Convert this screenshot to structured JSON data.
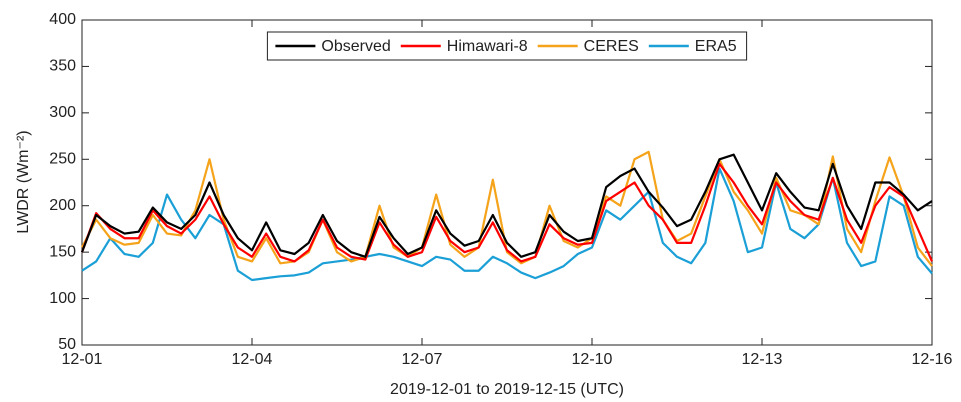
{
  "chart_data": {
    "type": "line",
    "ylabel": "LWDR (Wm⁻²)",
    "xlabel": "2019-12-01 to 2019-12-15 (UTC)",
    "xlim": [
      0,
      15
    ],
    "xticks": [
      {
        "value": 0,
        "label": "12-01"
      },
      {
        "value": 3,
        "label": "12-04"
      },
      {
        "value": 6,
        "label": "12-07"
      },
      {
        "value": 9,
        "label": "12-10"
      },
      {
        "value": 12,
        "label": "12-13"
      },
      {
        "value": 15,
        "label": "12-16"
      }
    ],
    "ylim": [
      50,
      400
    ],
    "yticks": [
      50,
      100,
      150,
      200,
      250,
      300,
      350,
      400
    ],
    "legend": "top",
    "x": [
      0,
      0.25,
      0.5,
      0.75,
      1,
      1.25,
      1.5,
      1.75,
      2,
      2.25,
      2.5,
      2.75,
      3,
      3.25,
      3.5,
      3.75,
      4,
      4.25,
      4.5,
      4.75,
      5,
      5.25,
      5.5,
      5.75,
      6,
      6.25,
      6.5,
      6.75,
      7,
      7.25,
      7.5,
      7.75,
      8,
      8.25,
      8.5,
      8.75,
      9,
      9.25,
      9.5,
      9.75,
      10,
      10.25,
      10.5,
      10.75,
      11,
      11.25,
      11.5,
      11.75,
      12,
      12.25,
      12.5,
      12.75,
      13,
      13.25,
      13.5,
      13.75,
      14,
      14.25,
      14.5,
      14.75,
      15
    ],
    "series": [
      {
        "name": "Observed",
        "color": "#000000",
        "values": [
          150,
          190,
          178,
          170,
          172,
          198,
          182,
          175,
          190,
          225,
          190,
          165,
          152,
          182,
          152,
          148,
          160,
          190,
          162,
          150,
          145,
          188,
          165,
          148,
          155,
          195,
          170,
          157,
          162,
          190,
          160,
          145,
          150,
          190,
          172,
          162,
          165,
          220,
          232,
          240,
          215,
          198,
          178,
          185,
          215,
          250,
          255,
          225,
          195,
          235,
          215,
          198,
          195,
          245,
          200,
          175,
          225,
          225,
          212,
          195,
          205
        ]
      },
      {
        "name": "Himawari-8",
        "color": "#ff0000",
        "values": [
          150,
          192,
          175,
          165,
          165,
          195,
          178,
          170,
          185,
          210,
          180,
          155,
          145,
          170,
          145,
          140,
          152,
          185,
          155,
          145,
          142,
          182,
          158,
          145,
          150,
          188,
          162,
          150,
          155,
          182,
          152,
          140,
          145,
          180,
          165,
          158,
          160,
          205,
          215,
          225,
          200,
          185,
          160,
          160,
          200,
          245,
          225,
          200,
          180,
          225,
          205,
          190,
          185,
          230,
          185,
          160,
          200,
          220,
          210,
          175,
          140
        ]
      },
      {
        "name": "CERES",
        "color": "#f5a31a",
        "values": [
          155,
          185,
          165,
          158,
          160,
          190,
          170,
          168,
          195,
          250,
          185,
          145,
          140,
          165,
          138,
          140,
          150,
          185,
          150,
          140,
          145,
          200,
          155,
          145,
          155,
          212,
          158,
          145,
          155,
          228,
          150,
          138,
          145,
          200,
          162,
          155,
          165,
          210,
          200,
          250,
          258,
          185,
          162,
          170,
          210,
          250,
          215,
          195,
          170,
          230,
          195,
          190,
          180,
          253,
          175,
          150,
          205,
          252,
          210,
          155,
          135
        ]
      },
      {
        "name": "ERA5",
        "color": "#1a9fd6",
        "values": [
          130,
          140,
          165,
          148,
          145,
          160,
          212,
          185,
          165,
          190,
          180,
          130,
          120,
          122,
          124,
          125,
          128,
          138,
          140,
          142,
          145,
          148,
          145,
          140,
          135,
          145,
          142,
          130,
          130,
          145,
          138,
          128,
          122,
          128,
          135,
          148,
          155,
          195,
          185,
          200,
          215,
          160,
          145,
          138,
          160,
          240,
          205,
          150,
          155,
          225,
          175,
          165,
          180,
          230,
          160,
          135,
          140,
          210,
          200,
          145,
          127
        ]
      }
    ]
  }
}
